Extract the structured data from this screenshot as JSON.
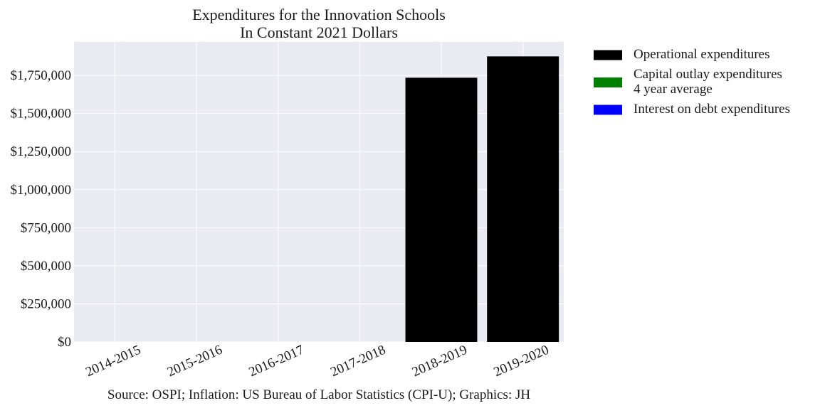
{
  "chart_data": {
    "type": "bar",
    "title": "Expenditures for the Innovation Schools\nIn Constant 2021 Dollars",
    "title_lines": [
      "Expenditures for the Innovation Schools",
      "In Constant 2021 Dollars"
    ],
    "xlabel": "",
    "ylabel": "",
    "categories": [
      "2014-2015",
      "2015-2016",
      "2016-2017",
      "2017-2018",
      "2018-2019",
      "2019-2020"
    ],
    "stacked": true,
    "series": [
      {
        "name": "Operational expenditures",
        "color": "#000000",
        "values": [
          0,
          0,
          0,
          0,
          1735000,
          1875000
        ]
      },
      {
        "name": "Capital outlay expenditures\n4 year average",
        "name_lines": [
          "Capital outlay expenditures",
          "4 year average"
        ],
        "color": "#008000",
        "values": [
          0,
          0,
          0,
          0,
          0,
          0
        ]
      },
      {
        "name": "Interest on debt expenditures",
        "color": "#0000ff",
        "values": [
          0,
          0,
          0,
          0,
          0,
          0
        ]
      }
    ],
    "ylim": [
      0,
      1970000
    ],
    "yticks": [
      0,
      250000,
      500000,
      750000,
      1000000,
      1250000,
      1500000,
      1750000
    ],
    "ytick_labels": [
      "$0",
      "$250,000",
      "$500,000",
      "$750,000",
      "$1,000,000",
      "$1,250,000",
      "$1,500,000",
      "$1,750,000"
    ],
    "grid": true,
    "legend_position": "outside-right",
    "background_color": "#eaeaf2",
    "source": "Source: OSPI; Inflation: US Bureau of Labor Statistics (CPI-U); Graphics: JH"
  }
}
